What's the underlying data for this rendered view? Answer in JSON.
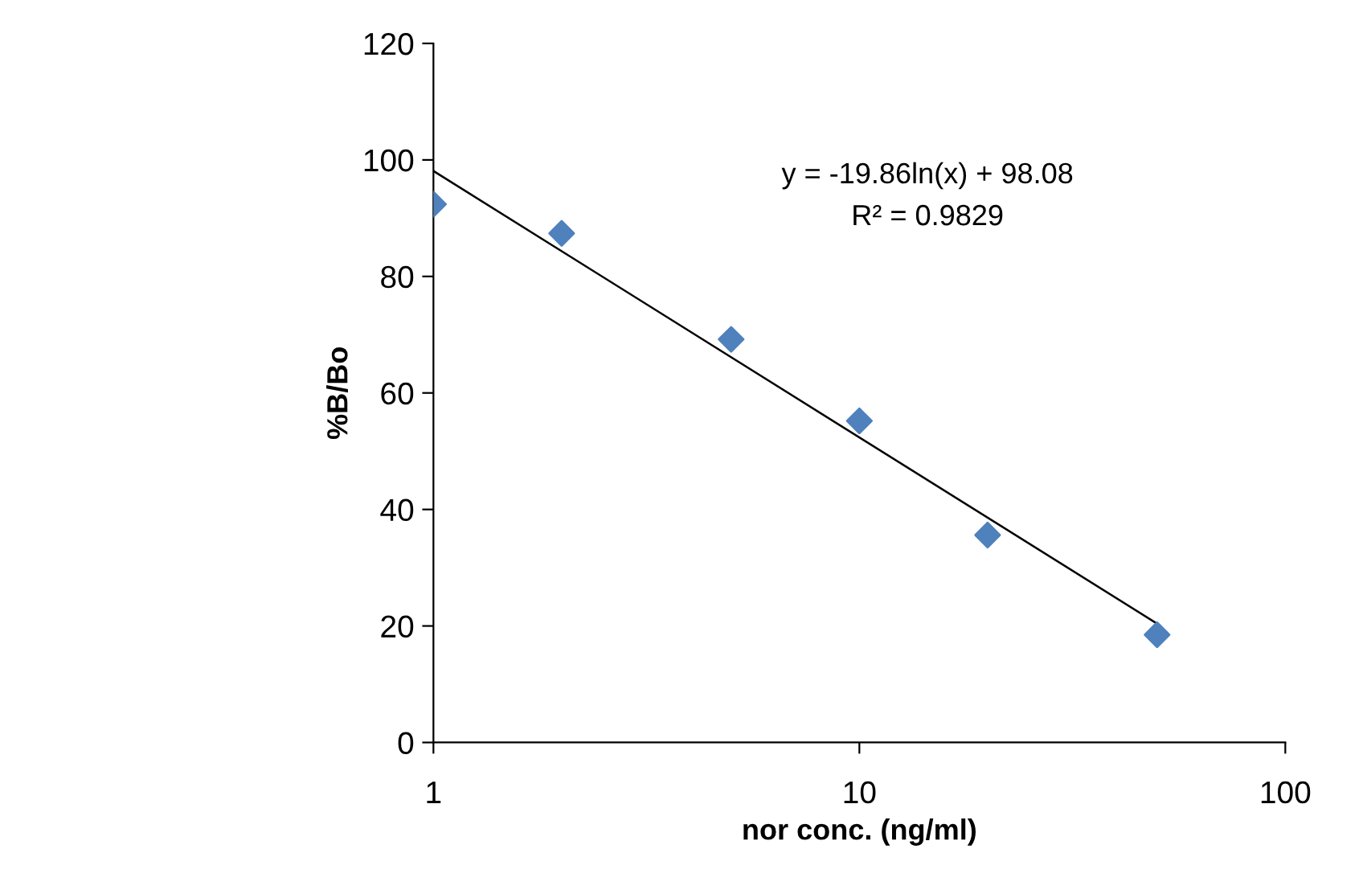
{
  "chart_data": {
    "type": "scatter",
    "xlabel": "nor conc. (ng/ml)",
    "ylabel": "%B/Bo",
    "log": "x",
    "xlim": [
      1,
      100
    ],
    "xticks": [
      1,
      10,
      100
    ],
    "ylim": [
      0,
      120
    ],
    "yticks": [
      0,
      20,
      40,
      60,
      80,
      100,
      120
    ],
    "grid": false,
    "legend": false,
    "marker": "diamond",
    "series": [
      {
        "color": "#4f81bd",
        "x": [
          1,
          2,
          5,
          10,
          20,
          50
        ],
        "values": [
          92.4,
          87.4,
          69.2,
          55.2,
          35.6,
          18.5
        ]
      },
      {
        "type": "line",
        "color": "#000000",
        "x": [
          1,
          50
        ],
        "values": [
          98.1,
          20.4
        ],
        "line_style": "solid",
        "marker": "none"
      }
    ],
    "annotations": [
      "y = -19.86ln(x) + 98.08",
      "R² = 0.9829"
    ]
  }
}
